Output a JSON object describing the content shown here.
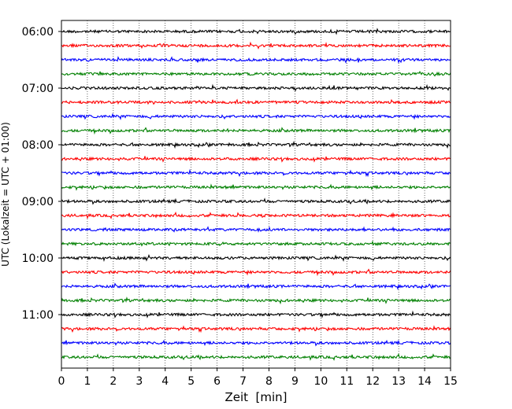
{
  "chart_data": {
    "type": "line",
    "title": "",
    "xlabel": "Zeit  [min]",
    "ylabel": "UTC (Lokalzeit = UTC + 01:00)",
    "xlim": [
      0,
      15
    ],
    "x_ticks": [
      0,
      1,
      2,
      3,
      4,
      5,
      6,
      7,
      8,
      9,
      10,
      11,
      12,
      13,
      14,
      15
    ],
    "y_tick_labels": [
      "06:00",
      "07:00",
      "08:00",
      "09:00",
      "10:00",
      "11:00"
    ],
    "grid": "vertical dotted at each minute",
    "trace_interval_minutes": 15,
    "start_time": "06:00",
    "end_time": "11:45",
    "trace_colors": [
      "#000000",
      "#ff0000",
      "#0000ff",
      "#008000"
    ],
    "series": [
      {
        "start": "06:00",
        "color": "#000000"
      },
      {
        "start": "06:15",
        "color": "#ff0000"
      },
      {
        "start": "06:30",
        "color": "#0000ff"
      },
      {
        "start": "06:45",
        "color": "#008000"
      },
      {
        "start": "07:00",
        "color": "#000000"
      },
      {
        "start": "07:15",
        "color": "#ff0000"
      },
      {
        "start": "07:30",
        "color": "#0000ff"
      },
      {
        "start": "07:45",
        "color": "#008000"
      },
      {
        "start": "08:00",
        "color": "#000000"
      },
      {
        "start": "08:15",
        "color": "#ff0000"
      },
      {
        "start": "08:30",
        "color": "#0000ff"
      },
      {
        "start": "08:45",
        "color": "#008000"
      },
      {
        "start": "09:00",
        "color": "#000000"
      },
      {
        "start": "09:15",
        "color": "#ff0000"
      },
      {
        "start": "09:30",
        "color": "#0000ff"
      },
      {
        "start": "09:45",
        "color": "#008000"
      },
      {
        "start": "10:00",
        "color": "#000000"
      },
      {
        "start": "10:15",
        "color": "#ff0000"
      },
      {
        "start": "10:30",
        "color": "#0000ff"
      },
      {
        "start": "10:45",
        "color": "#008000"
      },
      {
        "start": "11:00",
        "color": "#000000"
      },
      {
        "start": "11:15",
        "color": "#ff0000"
      },
      {
        "start": "11:30",
        "color": "#0000ff"
      },
      {
        "start": "11:45",
        "color": "#008000"
      }
    ]
  }
}
